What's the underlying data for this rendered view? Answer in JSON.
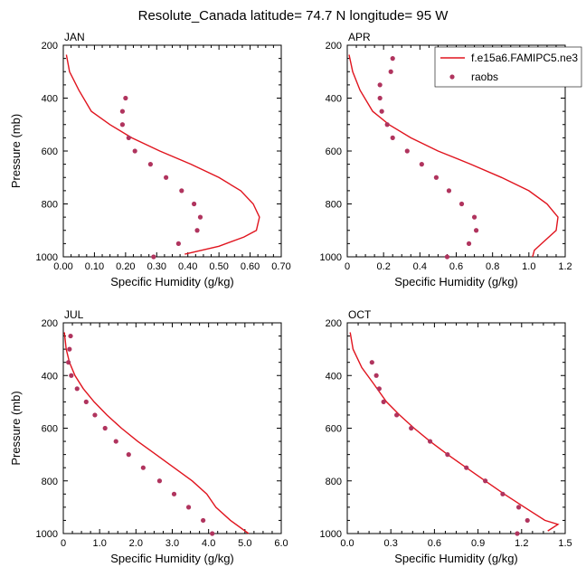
{
  "page": {
    "title": "Resolute_Canada  latitude= 74.7 N longitude= 95 W"
  },
  "colors": {
    "model_line": "#e0141e",
    "obs_marker": "#b0345e",
    "axis": "#000000"
  },
  "legend": {
    "entries": [
      {
        "label": "f.e15a6.FAMIPC5.ne3",
        "kind": "line"
      },
      {
        "label": "raobs",
        "kind": "marker"
      }
    ],
    "placement": "top-right of APR panel"
  },
  "chart_data": [
    {
      "type": "line",
      "panel": "JAN",
      "title": "JAN",
      "xlabel": "Specific Humidity (g/kg)",
      "ylabel": "Pressure (mb)",
      "xlim": [
        0,
        0.7
      ],
      "ylim": [
        1000,
        200
      ],
      "xticks": [
        0,
        0.1,
        0.2,
        0.3,
        0.4,
        0.5,
        0.6,
        0.7
      ],
      "xtick_labels": [
        "0.00",
        "0.10",
        "0.20",
        "0.30",
        "0.40",
        "0.50",
        "0.60",
        "0.70"
      ],
      "yticks": [
        200,
        400,
        600,
        800,
        1000
      ],
      "ytick_labels": [
        "200",
        "400",
        "600",
        "800",
        "1000"
      ],
      "series": [
        {
          "name": "f.e15a6.FAMIPC5.ne3",
          "kind": "line",
          "x": [
            0.01,
            0.02,
            0.05,
            0.09,
            0.15,
            0.22,
            0.31,
            0.41,
            0.5,
            0.57,
            0.61,
            0.63,
            0.62,
            0.58,
            0.5,
            0.39
          ],
          "y": [
            236,
            300,
            370,
            450,
            500,
            550,
            600,
            650,
            700,
            750,
            800,
            850,
            900,
            925,
            960,
            990
          ]
        },
        {
          "name": "raobs",
          "kind": "marker",
          "x": [
            0.2,
            0.19,
            0.19,
            0.21,
            0.23,
            0.28,
            0.33,
            0.38,
            0.42,
            0.44,
            0.43,
            0.37,
            0.29
          ],
          "y": [
            400,
            450,
            500,
            550,
            600,
            650,
            700,
            750,
            800,
            850,
            900,
            950,
            1000
          ]
        }
      ]
    },
    {
      "type": "line",
      "panel": "APR",
      "title": "APR",
      "xlabel": "Specific Humidity (g/kg)",
      "ylabel": "",
      "xlim": [
        0,
        1.2
      ],
      "ylim": [
        1000,
        200
      ],
      "xticks": [
        0,
        0.2,
        0.4,
        0.6,
        0.8,
        1.0,
        1.2
      ],
      "xtick_labels": [
        "0",
        "0.2",
        "0.4",
        "0.6",
        "0.8",
        "1.0",
        "1.2"
      ],
      "yticks": [
        200,
        400,
        600,
        800,
        1000
      ],
      "ytick_labels": [
        "200",
        "400",
        "600",
        "800",
        "1000"
      ],
      "series": [
        {
          "name": "f.e15a6.FAMIPC5.ne3",
          "kind": "line",
          "x": [
            0.01,
            0.03,
            0.07,
            0.14,
            0.23,
            0.35,
            0.5,
            0.68,
            0.85,
            1.0,
            1.1,
            1.16,
            1.15,
            1.07,
            1.03,
            1.02
          ],
          "y": [
            236,
            300,
            370,
            450,
            500,
            550,
            600,
            650,
            700,
            750,
            800,
            850,
            900,
            950,
            975,
            1000
          ]
        },
        {
          "name": "raobs",
          "kind": "marker",
          "x": [
            0.25,
            0.24,
            0.18,
            0.18,
            0.19,
            0.22,
            0.25,
            0.33,
            0.41,
            0.49,
            0.56,
            0.63,
            0.7,
            0.71,
            0.67,
            0.55
          ],
          "y": [
            250,
            300,
            350,
            400,
            450,
            500,
            550,
            600,
            650,
            700,
            750,
            800,
            850,
            900,
            950,
            1000
          ]
        }
      ]
    },
    {
      "type": "line",
      "panel": "JUL",
      "title": "JUL",
      "xlabel": "Specific Humidity (g/kg)",
      "ylabel": "Pressure (mb)",
      "xlim": [
        0,
        6
      ],
      "ylim": [
        1000,
        200
      ],
      "xticks": [
        0,
        1,
        2,
        3,
        4,
        5,
        6
      ],
      "xtick_labels": [
        "0",
        "1.0",
        "2.0",
        "3.0",
        "4.0",
        "5.0",
        "6.0"
      ],
      "yticks": [
        200,
        400,
        600,
        800,
        1000
      ],
      "ytick_labels": [
        "200",
        "400",
        "600",
        "800",
        "1000"
      ],
      "series": [
        {
          "name": "f.e15a6.FAMIPC5.ne3",
          "kind": "line",
          "x": [
            0.03,
            0.08,
            0.17,
            0.32,
            0.55,
            0.85,
            1.2,
            1.6,
            2.05,
            2.55,
            3.05,
            3.55,
            3.95,
            4.2,
            4.6,
            5.1
          ],
          "y": [
            236,
            300,
            350,
            400,
            450,
            500,
            550,
            600,
            650,
            700,
            750,
            800,
            850,
            900,
            950,
            1000
          ]
        },
        {
          "name": "raobs",
          "kind": "marker",
          "x": [
            0.2,
            0.17,
            0.14,
            0.22,
            0.38,
            0.63,
            0.87,
            1.15,
            1.45,
            1.8,
            2.2,
            2.65,
            3.05,
            3.45,
            3.85,
            4.1
          ],
          "y": [
            250,
            300,
            350,
            400,
            450,
            500,
            550,
            600,
            650,
            700,
            750,
            800,
            850,
            900,
            950,
            1000
          ]
        }
      ]
    },
    {
      "type": "line",
      "panel": "OCT",
      "title": "OCT",
      "xlabel": "Specific Humidity (g/kg)",
      "ylabel": "",
      "xlim": [
        0,
        1.5
      ],
      "ylim": [
        1000,
        200
      ],
      "xticks": [
        0,
        0.3,
        0.6,
        0.9,
        1.2,
        1.5
      ],
      "xtick_labels": [
        "0.0",
        "0.3",
        "0.6",
        "0.9",
        "1.2",
        "1.5"
      ],
      "yticks": [
        200,
        400,
        600,
        800,
        1000
      ],
      "ytick_labels": [
        "200",
        "400",
        "600",
        "800",
        "1000"
      ],
      "series": [
        {
          "name": "f.e15a6.FAMIPC5.ne3",
          "kind": "line",
          "x": [
            0.02,
            0.04,
            0.1,
            0.18,
            0.27,
            0.36,
            0.46,
            0.57,
            0.69,
            0.82,
            0.95,
            1.08,
            1.22,
            1.36,
            1.45,
            1.38
          ],
          "y": [
            236,
            300,
            370,
            430,
            500,
            550,
            600,
            650,
            700,
            750,
            800,
            850,
            900,
            950,
            965,
            990
          ]
        },
        {
          "name": "raobs",
          "kind": "marker",
          "x": [
            0.17,
            0.2,
            0.22,
            0.25,
            0.34,
            0.44,
            0.57,
            0.69,
            0.82,
            0.95,
            1.07,
            1.18,
            1.24,
            1.17
          ],
          "y": [
            350,
            400,
            450,
            500,
            550,
            600,
            650,
            700,
            750,
            800,
            850,
            900,
            950,
            1000
          ]
        }
      ]
    }
  ]
}
